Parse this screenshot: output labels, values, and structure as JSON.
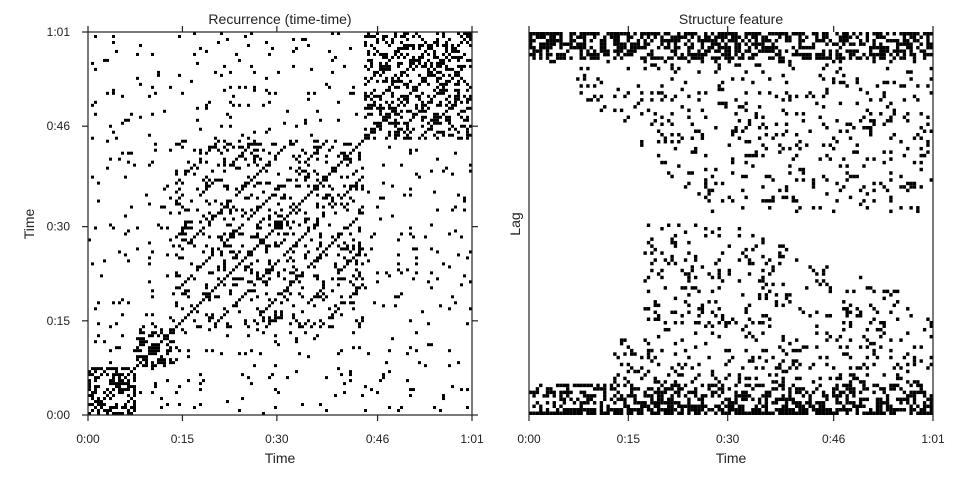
{
  "chart_data": [
    {
      "type": "heatmap",
      "title": "Recurrence (time-time)",
      "xlabel": "Time",
      "ylabel": "Time",
      "xticks": [
        "0:00",
        "0:15",
        "0:30",
        "0:46",
        "1:01"
      ],
      "yticks": [
        "0:00",
        "0:15",
        "0:30",
        "0:46",
        "1:01"
      ],
      "xlim_seconds": [
        0,
        61
      ],
      "ylim_seconds": [
        0,
        61
      ],
      "grid": false,
      "colors": {
        "background": "#ffffff",
        "cells": "#000000"
      },
      "dense_blocks_seconds": [
        {
          "start": 0,
          "end": 7.5,
          "density": 0.5
        },
        {
          "start": 7.5,
          "end": 14,
          "density": 0.35
        },
        {
          "start": 14,
          "end": 44,
          "density": 0.16
        },
        {
          "start": 44,
          "end": 61,
          "density": 0.3
        }
      ]
    },
    {
      "type": "heatmap",
      "title": "Structure feature",
      "xlabel": "Time",
      "ylabel": "Lag",
      "xticks": [
        "0:00",
        "0:15",
        "0:30",
        "0:46",
        "1:01"
      ],
      "yticks": [],
      "xlim_seconds": [
        0,
        61
      ],
      "grid": false,
      "colors": {
        "background": "#ffffff",
        "cells": "#000000"
      }
    }
  ]
}
